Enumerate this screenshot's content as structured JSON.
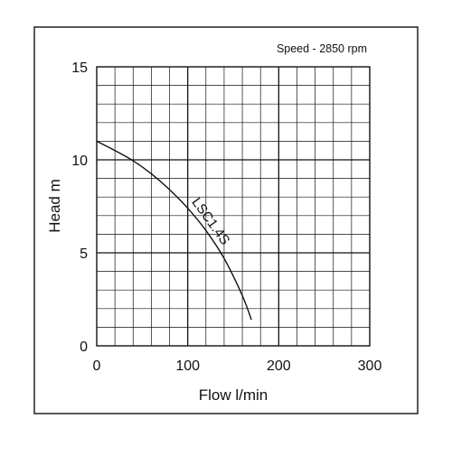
{
  "chart_data": {
    "type": "line",
    "title": "",
    "annotation": "Speed - 2850 rpm",
    "xlabel": "Flow l/min",
    "ylabel": "Head m",
    "xlim": [
      0,
      300
    ],
    "ylim": [
      0,
      15
    ],
    "x_ticks": [
      "0",
      "100",
      "200",
      "300"
    ],
    "y_ticks": [
      "0",
      "5",
      "10",
      "15"
    ],
    "grid": true,
    "minor_grid_divisions": {
      "x": 15,
      "y": 15
    },
    "colors": {
      "line": "#111111",
      "grid": "#111111",
      "text": "#111111"
    },
    "series": [
      {
        "name": "LSC1.4S",
        "label_position": "along curve",
        "x": [
          0,
          20,
          40,
          60,
          80,
          100,
          120,
          140,
          160,
          170
        ],
        "y": [
          11.0,
          10.5,
          9.95,
          9.25,
          8.4,
          7.4,
          6.2,
          4.7,
          2.7,
          1.4
        ]
      }
    ]
  }
}
